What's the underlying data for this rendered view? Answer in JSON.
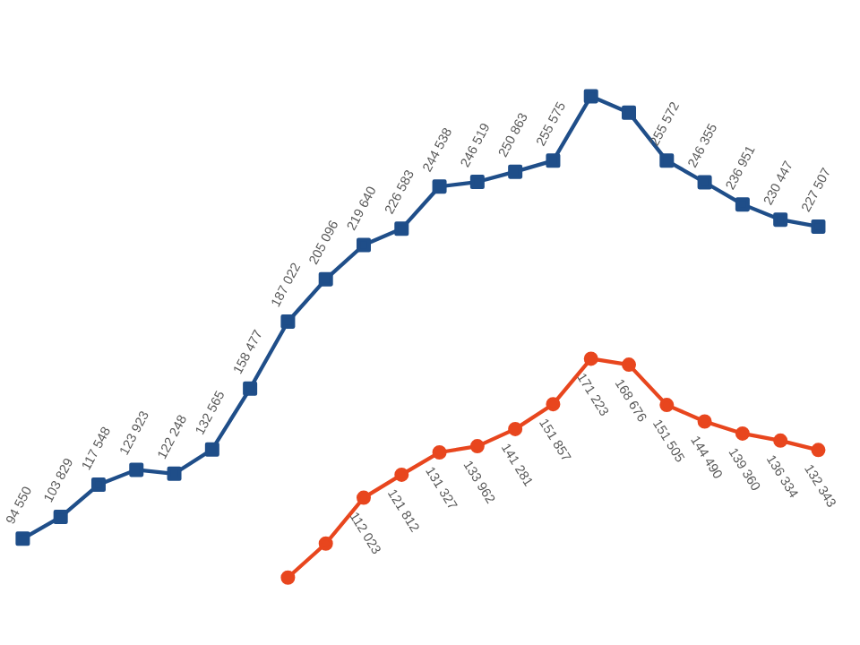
{
  "chart_data": {
    "type": "line",
    "categories": [
      null,
      null,
      null,
      null,
      null,
      null,
      null,
      null,
      null,
      null,
      null,
      null,
      null,
      null,
      null,
      null,
      null,
      null,
      null,
      null,
      null,
      null
    ],
    "data_labels": false,
    "series": [
      {
        "color": "#1f4e89",
        "marker": "square",
        "values": [
          94550,
          103829,
          117548,
          123923,
          122248,
          132565,
          158477,
          187022,
          205096,
          219640,
          226583,
          244538,
          246519,
          250863,
          255575,
          283000,
          276000,
          255572,
          246355,
          236951,
          230447,
          227507
        ],
        "value_labels": [
          "94 550",
          "103 829",
          "117 548",
          "123 923",
          "122 248",
          "132 565",
          "158 477",
          "187 022",
          "205 096",
          "219 640",
          "226 583",
          "244 538",
          "246 519",
          "250 863",
          "255 575",
          null,
          null,
          "255 572",
          "246 355",
          "236 951",
          "230 447",
          "227 507"
        ]
      },
      {
        "color": "#e8461e",
        "marker": "circle",
        "values": [
          null,
          null,
          null,
          null,
          null,
          null,
          null,
          78000,
          92500,
          112023,
          121812,
          131327,
          133962,
          141281,
          151857,
          171223,
          168676,
          151505,
          144490,
          139360,
          136334,
          132343
        ],
        "value_labels": [
          null,
          null,
          null,
          null,
          null,
          null,
          null,
          null,
          null,
          "112 023",
          "121 812",
          "131 327",
          "133 962",
          "141 281",
          "151 857",
          "171 223",
          "168 676",
          "151 505",
          "144 490",
          "139 360",
          "136 334",
          "132 343"
        ]
      }
    ]
  }
}
